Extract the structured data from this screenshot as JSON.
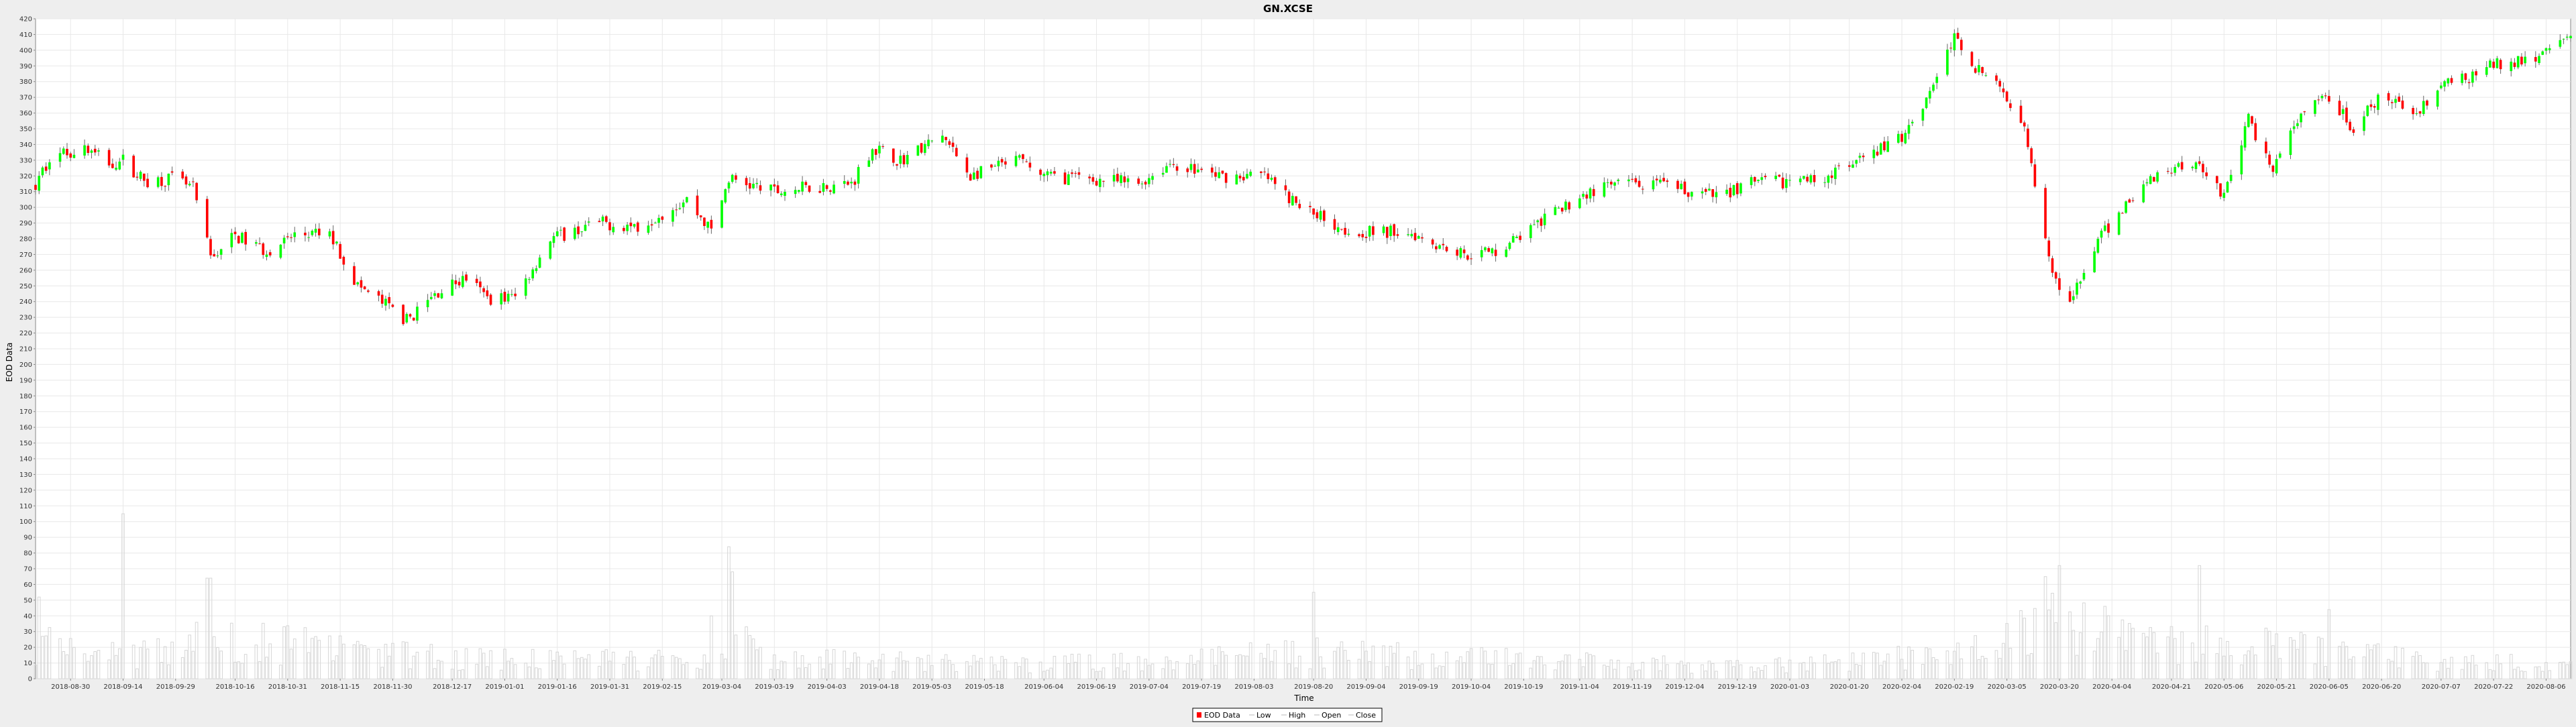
{
  "chart_data": {
    "type": "candlestick",
    "title": "GN.XCSE",
    "xlabel": "Time",
    "ylabel": "EOD Data",
    "ylim": [
      0,
      420
    ],
    "y_ticks": [
      0,
      10,
      20,
      30,
      40,
      50,
      60,
      70,
      80,
      90,
      100,
      110,
      120,
      130,
      140,
      150,
      160,
      170,
      180,
      190,
      200,
      210,
      220,
      230,
      240,
      250,
      260,
      270,
      280,
      290,
      300,
      310,
      320,
      330,
      340,
      350,
      360,
      370,
      380,
      390,
      400,
      410,
      420
    ],
    "x_range": [
      "2018-08-20",
      "2020-08-13"
    ],
    "x_ticks": [
      "2018-08-30",
      "2018-09-14",
      "2018-09-29",
      "2018-10-16",
      "2018-10-31",
      "2018-11-15",
      "2018-11-30",
      "2018-12-17",
      "2019-01-01",
      "2019-01-16",
      "2019-01-31",
      "2019-02-15",
      "2019-03-04",
      "2019-03-19",
      "2019-04-03",
      "2019-04-18",
      "2019-05-03",
      "2019-05-18",
      "2019-06-04",
      "2019-06-19",
      "2019-07-04",
      "2019-07-19",
      "2019-08-03",
      "2019-08-20",
      "2019-09-04",
      "2019-09-19",
      "2019-10-04",
      "2019-10-19",
      "2019-11-04",
      "2019-11-19",
      "2019-12-04",
      "2019-12-19",
      "2020-01-03",
      "2020-01-20",
      "2020-02-04",
      "2020-02-19",
      "2020-03-05",
      "2020-03-20",
      "2020-04-04",
      "2020-04-21",
      "2020-05-06",
      "2020-05-21",
      "2020-06-05",
      "2020-06-20",
      "2020-07-07",
      "2020-07-22",
      "2020-08-06"
    ],
    "grid": true,
    "legend_position": "bottom-center",
    "legend": [
      "EOD Data",
      "Low",
      "High",
      "Open",
      "Close"
    ],
    "colors": {
      "up": "#00ff00",
      "down": "#ff0000",
      "wick": "#666666",
      "volume": "#d6d6d6",
      "grid": "#e8e8e8",
      "plot_bg": "#ffffff",
      "page_bg": "#eeeeee"
    },
    "price_path": [
      [
        "2018-08-20",
        313
      ],
      [
        "2018-08-24",
        332
      ],
      [
        "2018-09-03",
        338
      ],
      [
        "2018-09-10",
        328
      ],
      [
        "2018-09-14",
        330
      ],
      [
        "2018-09-20",
        317
      ],
      [
        "2018-09-28",
        318
      ],
      [
        "2018-10-04",
        312
      ],
      [
        "2018-10-09",
        268
      ],
      [
        "2018-10-16",
        282
      ],
      [
        "2018-10-25",
        272
      ],
      [
        "2018-11-02",
        282
      ],
      [
        "2018-11-12",
        283
      ],
      [
        "2018-11-20",
        250
      ],
      [
        "2018-11-28",
        238
      ],
      [
        "2018-12-04",
        228
      ],
      [
        "2018-12-14",
        248
      ],
      [
        "2018-12-21",
        255
      ],
      [
        "2018-12-27",
        242
      ],
      [
        "2019-01-04",
        243
      ],
      [
        "2019-01-14",
        280
      ],
      [
        "2019-01-28",
        290
      ],
      [
        "2019-02-08",
        288
      ],
      [
        "2019-02-22",
        305
      ],
      [
        "2019-03-01",
        285
      ],
      [
        "2019-03-06",
        318
      ],
      [
        "2019-03-19",
        310
      ],
      [
        "2019-04-03",
        314
      ],
      [
        "2019-04-10",
        315
      ],
      [
        "2019-04-16",
        338
      ],
      [
        "2019-04-24",
        330
      ],
      [
        "2019-05-06",
        345
      ],
      [
        "2019-05-14",
        320
      ],
      [
        "2019-05-28",
        330
      ],
      [
        "2019-06-04",
        320
      ],
      [
        "2019-06-18",
        318
      ],
      [
        "2019-07-01",
        315
      ],
      [
        "2019-07-10",
        328
      ],
      [
        "2019-07-24",
        320
      ],
      [
        "2019-08-06",
        320
      ],
      [
        "2019-08-16",
        300
      ],
      [
        "2019-08-22",
        295
      ],
      [
        "2019-08-30",
        285
      ],
      [
        "2019-09-06",
        284
      ],
      [
        "2019-09-16",
        285
      ],
      [
        "2019-10-02",
        270
      ],
      [
        "2019-10-11",
        272
      ],
      [
        "2019-10-24",
        290
      ],
      [
        "2019-11-04",
        307
      ],
      [
        "2019-11-15",
        315
      ],
      [
        "2019-11-29",
        313
      ],
      [
        "2019-12-12",
        307
      ],
      [
        "2019-12-23",
        315
      ],
      [
        "2020-01-10",
        318
      ],
      [
        "2020-01-20",
        325
      ],
      [
        "2020-02-04",
        345
      ],
      [
        "2020-02-11",
        370
      ],
      [
        "2020-02-19",
        408
      ],
      [
        "2020-02-25",
        390
      ],
      [
        "2020-03-05",
        370
      ],
      [
        "2020-03-10",
        355
      ],
      [
        "2020-03-16",
        278
      ],
      [
        "2020-03-22",
        232
      ],
      [
        "2020-03-30",
        275
      ],
      [
        "2020-04-09",
        305
      ],
      [
        "2020-04-17",
        322
      ],
      [
        "2020-04-28",
        330
      ],
      [
        "2020-05-06",
        308
      ],
      [
        "2020-05-13",
        355
      ],
      [
        "2020-05-20",
        325
      ],
      [
        "2020-05-28",
        358
      ],
      [
        "2020-06-05",
        370
      ],
      [
        "2020-06-12",
        350
      ],
      [
        "2020-06-19",
        368
      ],
      [
        "2020-06-30",
        362
      ],
      [
        "2020-07-07",
        377
      ],
      [
        "2020-07-14",
        382
      ],
      [
        "2020-07-22",
        390
      ],
      [
        "2020-07-31",
        395
      ],
      [
        "2020-08-07",
        400
      ],
      [
        "2020-08-13",
        408
      ]
    ],
    "volume_path": [
      [
        "2018-08-20",
        25
      ],
      [
        "2018-09-14",
        18
      ],
      [
        "2018-09-28",
        18
      ],
      [
        "2018-10-08",
        30
      ],
      [
        "2018-11-15",
        20
      ],
      [
        "2018-12-14",
        15
      ],
      [
        "2019-01-16",
        14
      ],
      [
        "2019-03-01",
        12
      ],
      [
        "2019-03-06",
        32
      ],
      [
        "2019-03-19",
        14
      ],
      [
        "2019-06-01",
        10
      ],
      [
        "2019-08-20",
        18
      ],
      [
        "2019-11-01",
        12
      ],
      [
        "2019-12-20",
        9
      ],
      [
        "2020-02-10",
        16
      ],
      [
        "2020-03-05",
        28
      ],
      [
        "2020-03-20",
        40
      ],
      [
        "2020-04-15",
        25
      ],
      [
        "2020-05-21",
        22
      ],
      [
        "2020-07-01",
        14
      ],
      [
        "2020-08-13",
        10
      ]
    ],
    "volume_spikes": [
      [
        "2018-09-14",
        105
      ],
      [
        "2018-10-08",
        64
      ],
      [
        "2018-10-09",
        64
      ],
      [
        "2019-03-06",
        84
      ],
      [
        "2019-03-07",
        68
      ],
      [
        "2019-08-20",
        55
      ],
      [
        "2020-02-08",
        68
      ],
      [
        "2020-03-16",
        65
      ],
      [
        "2020-03-20",
        72
      ],
      [
        "2020-04-29",
        72
      ],
      [
        "2018-08-21",
        52
      ],
      [
        "2019-03-01",
        40
      ],
      [
        "2020-06-05",
        44
      ]
    ]
  }
}
